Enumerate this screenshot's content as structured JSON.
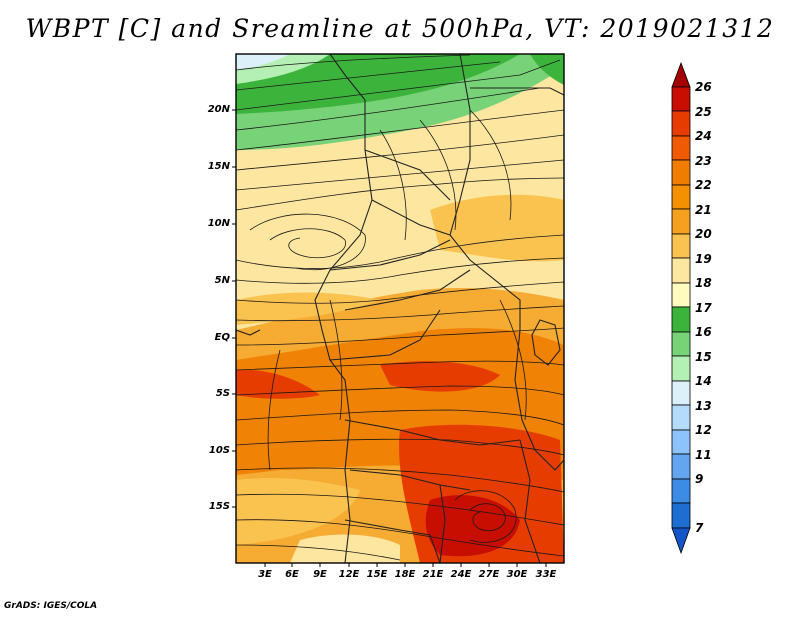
{
  "title": "WBPT [C] and Sreamline at 500hPa, VT: 2019021312",
  "footer": "GrADS: IGES/COLA",
  "map": {
    "lat_labels": [
      "20N",
      "15N",
      "10N",
      "5N",
      "EQ",
      "5S",
      "10S",
      "15S"
    ],
    "lon_labels": [
      "3E",
      "6E",
      "9E",
      "12E",
      "15E",
      "18E",
      "21E",
      "24E",
      "27E",
      "30E",
      "33E"
    ]
  },
  "colorbar": {
    "labels": [
      "26",
      "25",
      "24",
      "23",
      "22",
      "21",
      "20",
      "19",
      "18",
      "17",
      "16",
      "15",
      "14",
      "13",
      "12",
      "11",
      "9",
      "7"
    ],
    "colors": [
      "#a50000",
      "#c80e00",
      "#e63c00",
      "#f05a00",
      "#f07d00",
      "#f5a01e",
      "#fac350",
      "#fde6a0",
      "#fffabe",
      "#3cb43c",
      "#78d278",
      "#b4f0b4",
      "#dcf0fa",
      "#b4dcfa",
      "#8cc3fa",
      "#64a5f0",
      "#3c8ce6",
      "#1e6ed2",
      "#1455c8"
    ]
  },
  "colors": {
    "deep_red": "#c80e00",
    "red_orange": "#e63c00",
    "orange": "#f07d00",
    "light_orange": "#f5a01e",
    "pale_orange": "#fac350",
    "cream": "#fde6a0",
    "pale_green": "#b4f0b4",
    "green": "#3cb43c",
    "light_blue": "#dcf0fa"
  }
}
